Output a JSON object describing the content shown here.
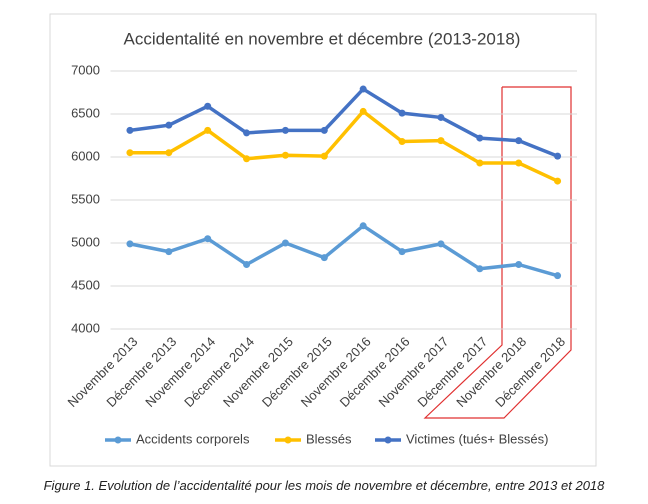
{
  "chart_data": {
    "type": "line",
    "title": "Accidentalité en novembre et décembre (2013-2018)",
    "categories": [
      "Novembre 2013",
      "Décembre 2013",
      "Novembre 2014",
      "Décembre 2014",
      "Novembre 2015",
      "Décembre 2015",
      "Novembre 2016",
      "Décembre 2016",
      "Novembre 2017",
      "Décembre 2017",
      "Novembre 2018",
      "Décembre 2018"
    ],
    "series": [
      {
        "name": "Accidents corporels",
        "color": "#5b9bd5",
        "values": [
          4990,
          4900,
          5050,
          4750,
          5000,
          4830,
          5200,
          4900,
          4990,
          4700,
          4750,
          4620
        ]
      },
      {
        "name": "Blessés",
        "color": "#ffc000",
        "values": [
          6050,
          6050,
          6310,
          5980,
          6020,
          6010,
          6530,
          6180,
          6190,
          5930,
          5930,
          5720
        ]
      },
      {
        "name": "Victimes (tués+ Blessés)",
        "color": "#4472c4",
        "values": [
          6310,
          6370,
          6590,
          6280,
          6310,
          6310,
          6790,
          6510,
          6460,
          6220,
          6190,
          6010
        ]
      }
    ],
    "ylim": [
      4000,
      7000
    ],
    "yticks": [
      4000,
      4500,
      5000,
      5500,
      6000,
      6500,
      7000
    ],
    "grid": true,
    "legend": "bottom"
  },
  "caption": "Figure 1. Evolution de l’accidentalité pour les mois de novembre et décembre, entre 2013 et 2018"
}
